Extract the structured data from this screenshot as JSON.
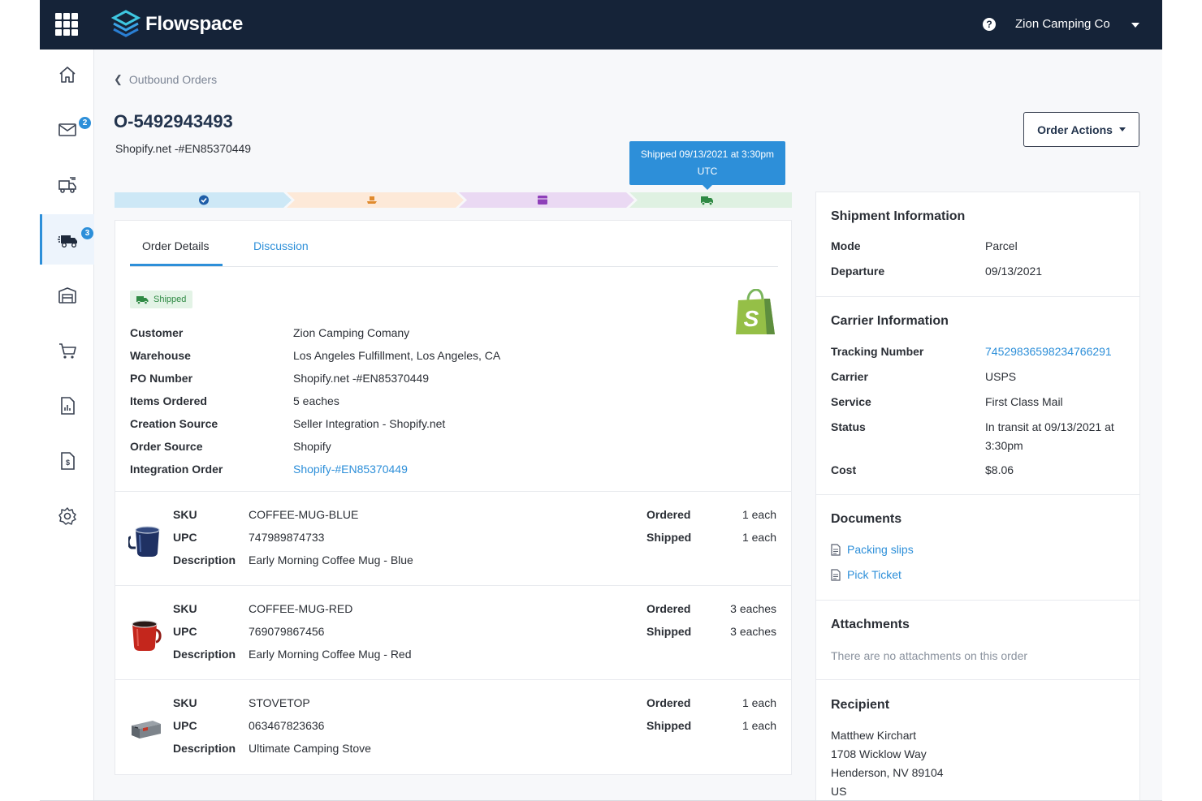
{
  "topbar": {
    "brand": "Flowspace",
    "company": "Zion Camping Co",
    "help_icon": "question-circle-icon"
  },
  "sidebar": {
    "items": [
      {
        "icon": "home-icon",
        "badge": ""
      },
      {
        "icon": "mail-icon",
        "badge": "2"
      },
      {
        "icon": "inbound-truck-icon",
        "badge": ""
      },
      {
        "icon": "outbound-truck-icon",
        "badge": "3"
      },
      {
        "icon": "warehouse-icon",
        "badge": ""
      },
      {
        "icon": "cart-icon",
        "badge": ""
      },
      {
        "icon": "report-icon",
        "badge": ""
      },
      {
        "icon": "invoice-icon",
        "badge": ""
      },
      {
        "icon": "settings-icon",
        "badge": ""
      }
    ]
  },
  "breadcrumb": {
    "label": "Outbound Orders"
  },
  "order": {
    "id": "O-5492943493",
    "subtitle": "Shopify.net -#EN85370449",
    "actions_label": "Order Actions"
  },
  "progress": {
    "tooltip": "Shipped 09/13/2021 at 3:30pm UTC",
    "steps": [
      {
        "icon": "check-circle-icon",
        "color": "#cde8f6",
        "icon_color": "#1f5ea8"
      },
      {
        "icon": "hand-box-icon",
        "color": "#fde9d8",
        "icon_color": "#e08a2d"
      },
      {
        "icon": "package-icon",
        "color": "#ead9f3",
        "icon_color": "#8e3fb9"
      },
      {
        "icon": "truck-icon",
        "color": "#dff1e2",
        "icon_color": "#2f8a44"
      }
    ]
  },
  "tabs": {
    "details": "Order Details",
    "discussion": "Discussion"
  },
  "status": {
    "label": "Shipped"
  },
  "details": [
    {
      "label": "Customer",
      "value": "Zion Camping Comany",
      "link": false
    },
    {
      "label": "Warehouse",
      "value": "Los Angeles Fulfillment, Los Angeles, CA",
      "link": false
    },
    {
      "label": "PO Number",
      "value": "Shopify.net -#EN85370449",
      "link": false
    },
    {
      "label": "Items Ordered",
      "value": "5 eaches",
      "link": false
    },
    {
      "label": "Creation Source",
      "value": "Seller Integration - Shopify.net",
      "link": false
    },
    {
      "label": "Order Source",
      "value": "Shopify",
      "link": false
    },
    {
      "label": "Integration Order",
      "value": "Shopify-#EN85370449",
      "link": true
    }
  ],
  "item_labels": {
    "sku": "SKU",
    "upc": "UPC",
    "description": "Description",
    "ordered": "Ordered",
    "shipped": "Shipped"
  },
  "items": [
    {
      "sku": "COFFEE-MUG-BLUE",
      "upc": "747989874733",
      "description": "Early Morning Coffee Mug - Blue",
      "ordered": "1 each",
      "shipped": "1 each",
      "image": "blue-mug-image"
    },
    {
      "sku": "COFFEE-MUG-RED",
      "upc": "769079867456",
      "description": "Early Morning Coffee Mug - Red",
      "ordered": "3 eaches",
      "shipped": "3 eaches",
      "image": "red-mug-image"
    },
    {
      "sku": "STOVETOP",
      "upc": "063467823636",
      "description": "Ultimate Camping Stove",
      "ordered": "1 each",
      "shipped": "1 each",
      "image": "camping-stove-image"
    }
  ],
  "shipment": {
    "title": "Shipment Information",
    "mode_label": "Mode",
    "mode": "Parcel",
    "departure_label": "Departure",
    "departure": "09/13/2021"
  },
  "carrier": {
    "title": "Carrier Information",
    "tracking_label": "Tracking Number",
    "tracking": "7452983659823476629​1",
    "carrier_label": "Carrier",
    "carrier": "USPS",
    "service_label": "Service",
    "service": "First Class Mail",
    "status_label": "Status",
    "status": "In transit at 09/13/2021 at 3:30pm",
    "cost_label": "Cost",
    "cost": "$8.06"
  },
  "documents": {
    "title": "Documents",
    "items": [
      "Packing slips",
      "Pick Ticket"
    ]
  },
  "attachments": {
    "title": "Attachments",
    "empty": "There are no attachments on this order"
  },
  "recipient": {
    "title": "Recipient",
    "name": "Matthew Kirchart",
    "street": "1708 Wicklow Way",
    "city": "Henderson, NV 89104",
    "country": "US"
  }
}
